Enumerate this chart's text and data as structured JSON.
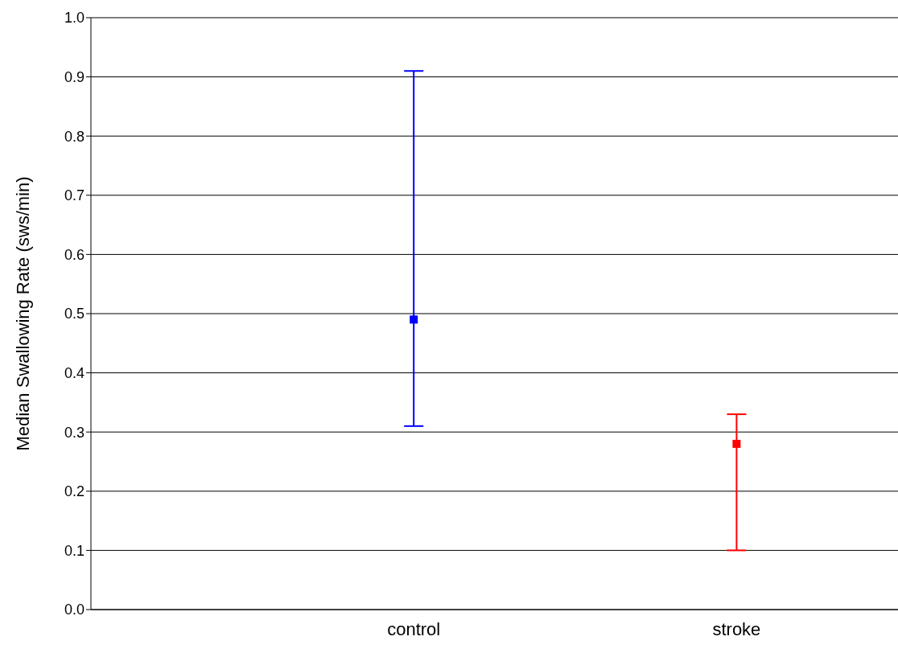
{
  "chart_data": {
    "type": "scatter",
    "ylabel": "Median Swallowing Rate (sws/min)",
    "categories": [
      "control",
      "stroke"
    ],
    "values": [
      0.49,
      0.28
    ],
    "colors": [
      "#0000ff",
      "#ff0000"
    ],
    "errors": [
      [
        0.31,
        0.91
      ],
      [
        0.1,
        0.33
      ]
    ],
    "ylim": [
      0,
      1
    ],
    "yticks": [
      {
        "value": 0,
        "label": "0.0"
      },
      0.1,
      0.2,
      0.3,
      0.4,
      0.5,
      0.6,
      0.7,
      0.8,
      0.9,
      {
        "value": 1,
        "label": "1.0"
      }
    ],
    "grid": "y",
    "marker": "square"
  }
}
